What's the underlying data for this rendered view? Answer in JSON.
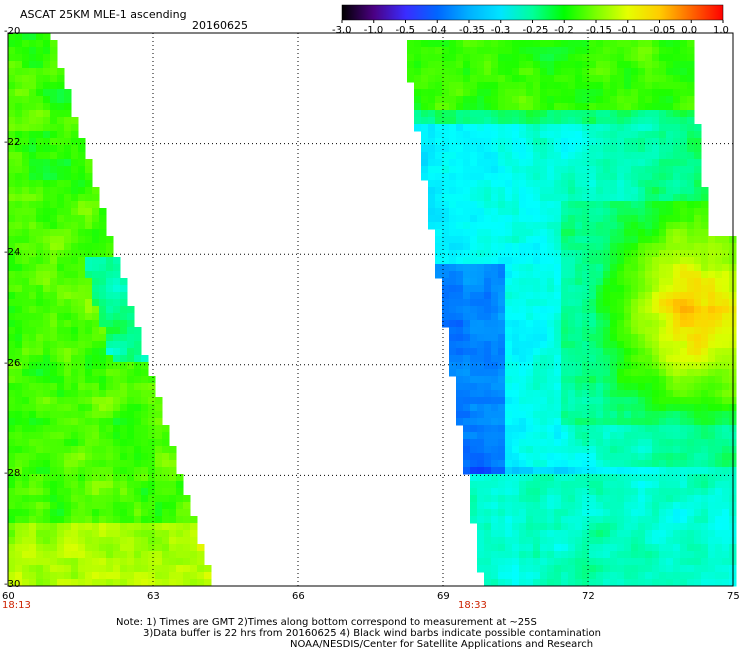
{
  "header": {
    "title": "ASCAT 25KM MLE-1 ascending",
    "date": "20160625"
  },
  "colorbar": {
    "labels": [
      "-3.0",
      "-1.0",
      "-0.5",
      "-0.4",
      "-0.35",
      "-0.3",
      "-0.25",
      "-0.2",
      "-0.15",
      "-0.1",
      "-0.05",
      "0.0",
      "1.0"
    ],
    "colors": [
      "#000000",
      "#4b0082",
      "#3a2cff",
      "#0066ff",
      "#00b0ff",
      "#00e5ff",
      "#00ff9a",
      "#00ff00",
      "#7bff00",
      "#e5ff00",
      "#ffcc00",
      "#ff6600",
      "#ff0000"
    ]
  },
  "map": {
    "lat_range": [
      -30,
      -20
    ],
    "lon_range": [
      60,
      75
    ],
    "y_ticks": [
      "-20",
      "-22",
      "-24",
      "-26",
      "-28",
      "-30"
    ],
    "x_ticks": [
      "60",
      "63",
      "66",
      "69",
      "72",
      "75"
    ],
    "pass_times": [
      "18:13",
      "18:33"
    ]
  },
  "notes": [
    "Note: 1) Times are GMT 2)Times along bottom correspond to measurement at ~25S",
    "3)Data buffer is 22 hrs from 20160625 4) Black wind barbs indicate possible contamination",
    "NOAA/NESDIS/Center for Satellite Applications and Research"
  ]
}
